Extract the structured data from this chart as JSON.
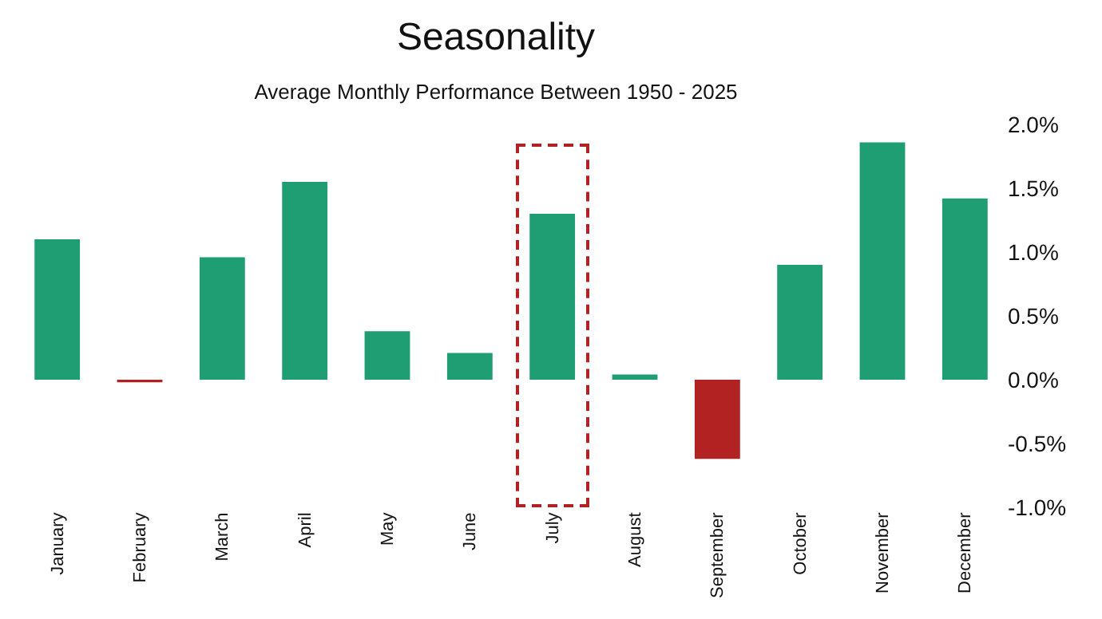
{
  "chart_data": {
    "type": "bar",
    "title": "Seasonality",
    "subtitle": "Average Monthly Performance Between 1950 - 2025",
    "categories": [
      "January",
      "February",
      "March",
      "April",
      "May",
      "June",
      "July",
      "August",
      "September",
      "October",
      "November",
      "December"
    ],
    "values": [
      1.1,
      -0.02,
      0.96,
      1.55,
      0.38,
      0.21,
      1.3,
      0.04,
      -0.62,
      0.9,
      1.86,
      1.42
    ],
    "colors": [
      "#1f9e74",
      "#b22222",
      "#1f9e74",
      "#1f9e74",
      "#1f9e74",
      "#1f9e74",
      "#1f9e74",
      "#1f9e74",
      "#b22222",
      "#1f9e74",
      "#1f9e74",
      "#1f9e74"
    ],
    "ylim": [
      -1,
      2
    ],
    "yticks": [
      {
        "value": -1,
        "label": "-1.0%"
      },
      {
        "value": -0.5,
        "label": "-0.5%"
      },
      {
        "value": 0,
        "label": "0.0%"
      },
      {
        "value": 0.5,
        "label": "0.5%"
      },
      {
        "value": 1,
        "label": "1.0%"
      },
      {
        "value": 1.5,
        "label": "1.5%"
      },
      {
        "value": 2,
        "label": "2.0%"
      }
    ],
    "grid": false
  }
}
